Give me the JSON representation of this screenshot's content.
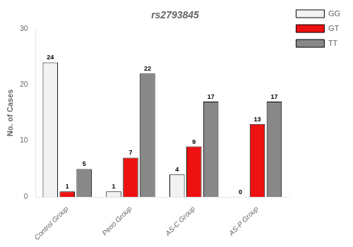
{
  "chart_data": {
    "type": "bar",
    "title": "rs2793845",
    "ylabel": "No. of Cases",
    "categories": [
      "Control Group",
      "Perio Group",
      "AS-C Group",
      "AS-P Group"
    ],
    "series": [
      {
        "name": "GG",
        "color": "#f2f2f2",
        "values": [
          24,
          1,
          4,
          0
        ]
      },
      {
        "name": "GT",
        "color": "#ee1111",
        "values": [
          1,
          7,
          9,
          13
        ]
      },
      {
        "name": "TT",
        "color": "#888888",
        "values": [
          5,
          22,
          17,
          17
        ]
      }
    ],
    "ylim": [
      0,
      30
    ],
    "yticks": [
      0,
      10,
      20,
      30
    ],
    "grid": false,
    "legend": "upper right",
    "data_labels": true
  }
}
